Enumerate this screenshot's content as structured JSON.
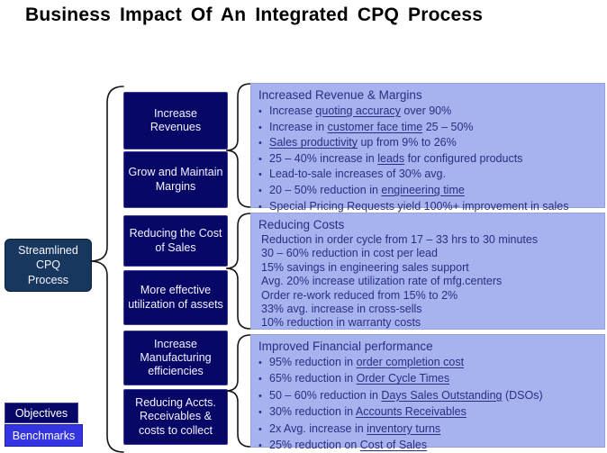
{
  "title": "Business Impact Of An Integrated CPQ Process",
  "source_box": {
    "label": "Streamlined\nCPQ\nProcess"
  },
  "objectives": {
    "items": [
      "Increase Revenues",
      "Grow and Maintain Margins",
      "Reducing the Cost of Sales",
      "More effective utilization of assets",
      "Increase Manufacturing efficiencies",
      "Reducing Accts. Receivables & costs to collect"
    ]
  },
  "panels": [
    {
      "header": "Increased Revenue & Margins",
      "bullets": true,
      "items": [
        {
          "segments": [
            {
              "t": "Increase "
            },
            {
              "t": "quoting accuracy",
              "u": true
            },
            {
              "t": " over 90%"
            }
          ]
        },
        {
          "segments": [
            {
              "t": "Increase in "
            },
            {
              "t": "customer face time",
              "u": true
            },
            {
              "t": " 25 – 50%"
            }
          ]
        },
        {
          "segments": [
            {
              "t": "Sales productivity",
              "u": true
            },
            {
              "t": " up from 9% to 26%"
            }
          ]
        },
        {
          "segments": [
            {
              "t": "25 – 40% increase in "
            },
            {
              "t": "leads",
              "u": true
            },
            {
              "t": " for configured products"
            }
          ]
        },
        {
          "segments": [
            {
              "t": "Lead-to-sale increases of 30% avg."
            }
          ]
        },
        {
          "segments": [
            {
              "t": "20 – 50% reduction in "
            },
            {
              "t": "engineering time",
              "u": true
            }
          ]
        },
        {
          "segments": [
            {
              "t": "Special Pricing Requests yield 100%+ improvement in sales"
            }
          ]
        }
      ]
    },
    {
      "header": "Reducing Costs",
      "bullets": false,
      "items": [
        {
          "segments": [
            {
              "t": "Reduction in order cycle from 17 – 33 hrs to 30 minutes"
            }
          ]
        },
        {
          "segments": [
            {
              "t": "30 – 60% reduction in cost per lead"
            }
          ]
        },
        {
          "segments": [
            {
              "t": "15% savings in engineering sales support"
            }
          ]
        },
        {
          "segments": [
            {
              "t": "Avg. 20% increase utilization rate of mfg.centers"
            }
          ]
        },
        {
          "segments": [
            {
              "t": "Order re-work reduced from 15% to 2%"
            }
          ]
        },
        {
          "segments": [
            {
              "t": "33% avg. increase in cross-sells"
            }
          ]
        },
        {
          "segments": [
            {
              "t": "10% reduction in warranty costs"
            }
          ]
        }
      ]
    },
    {
      "header": "Improved Financial performance",
      "bullets": true,
      "items": [
        {
          "segments": [
            {
              "t": "95% reduction in "
            },
            {
              "t": "order completion cost",
              "u": true
            }
          ]
        },
        {
          "segments": [
            {
              "t": "65% reduction in "
            },
            {
              "t": "Order Cycle Times",
              "u": true
            }
          ]
        },
        {
          "segments": [
            {
              "t": "50 – 60% reduction in "
            },
            {
              "t": "Days Sales Outstanding",
              "u": true
            },
            {
              "t": " (DSOs)"
            }
          ]
        },
        {
          "segments": [
            {
              "t": "30% reduction in "
            },
            {
              "t": "Accounts Receivables",
              "u": true
            }
          ]
        },
        {
          "segments": [
            {
              "t": "2x Avg. increase in "
            },
            {
              "t": "inventory turns",
              "u": true
            }
          ]
        },
        {
          "segments": [
            {
              "t": "25% reduction on "
            },
            {
              "t": "Cost of Sales",
              "u": true
            }
          ]
        }
      ]
    }
  ],
  "legend": {
    "objectives": "Objectives",
    "benchmarks": "Benchmarks"
  },
  "colors": {
    "objective_box": "#070768",
    "source_box": "#17375e",
    "panel_bg": "#a6b3ee",
    "panel_text": "#2d2d82",
    "benchmark_legend": "#3434e2"
  }
}
